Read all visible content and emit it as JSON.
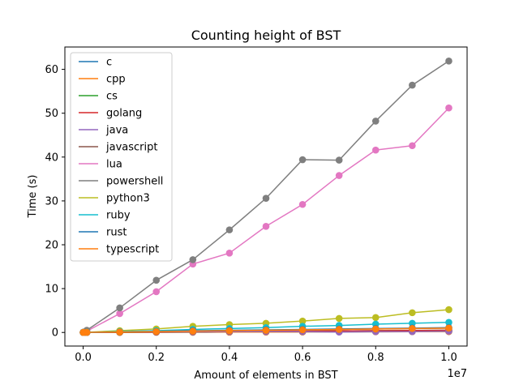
{
  "chart_data": {
    "type": "line",
    "title": "Counting height of BST",
    "xlabel": "Amount of elements in BST",
    "ylabel": "Time (s)",
    "x_offset_label": "1e7",
    "xlim": [
      -0.05,
      1.05
    ],
    "ylim": [
      -3.1,
      65.1
    ],
    "xticks": [
      0.0,
      0.2,
      0.4,
      0.6,
      0.8,
      1.0
    ],
    "xtick_labels": [
      "0.0",
      "0.2",
      "0.4",
      "0.6",
      "0.8",
      "1.0"
    ],
    "yticks": [
      0,
      10,
      20,
      30,
      40,
      50,
      60
    ],
    "ytick_labels": [
      "0",
      "10",
      "20",
      "30",
      "40",
      "50",
      "60"
    ],
    "grid": false,
    "legend_position": "top-left",
    "x": [
      0.0001,
      0.001,
      0.01,
      0.1,
      0.2,
      0.3,
      0.4,
      0.5,
      0.6,
      0.7,
      0.8,
      0.9,
      1.0
    ],
    "series": [
      {
        "name": "c",
        "color": "#1f77b4",
        "values": [
          0.0,
          0.0,
          0.0,
          0.02,
          0.04,
          0.06,
          0.08,
          0.1,
          0.12,
          0.14,
          0.16,
          0.18,
          0.2
        ]
      },
      {
        "name": "cpp",
        "color": "#ff7f0e",
        "values": [
          0.0,
          0.0,
          0.0,
          0.02,
          0.04,
          0.06,
          0.08,
          0.1,
          0.12,
          0.14,
          0.16,
          0.18,
          0.2
        ]
      },
      {
        "name": "cs",
        "color": "#2ca02c",
        "values": [
          0.0,
          0.0,
          0.0,
          0.05,
          0.1,
          0.15,
          0.2,
          0.25,
          0.3,
          0.35,
          0.4,
          0.45,
          0.5
        ]
      },
      {
        "name": "golang",
        "color": "#d62728",
        "values": [
          0.0,
          0.0,
          0.0,
          0.05,
          0.1,
          0.15,
          0.2,
          0.25,
          0.3,
          0.35,
          0.4,
          0.45,
          0.5
        ]
      },
      {
        "name": "java",
        "color": "#9467bd",
        "values": [
          0.0,
          0.0,
          0.01,
          0.1,
          0.15,
          0.15,
          0.2,
          0.2,
          0.2,
          0.1,
          0.2,
          0.2,
          0.3
        ]
      },
      {
        "name": "javascript",
        "color": "#8c564b",
        "values": [
          0.0,
          0.0,
          0.01,
          0.1,
          0.2,
          0.3,
          0.4,
          0.5,
          0.6,
          0.7,
          0.8,
          0.9,
          1.0
        ]
      },
      {
        "name": "lua",
        "color": "#e377c2",
        "values": [
          0.0,
          0.0,
          0.3,
          4.3,
          9.3,
          15.6,
          18.1,
          24.2,
          29.2,
          35.8,
          41.6,
          42.6,
          51.2
        ]
      },
      {
        "name": "powershell",
        "color": "#7f7f7f",
        "values": [
          0.0,
          0.1,
          0.5,
          5.6,
          11.9,
          16.6,
          23.4,
          30.6,
          39.4,
          39.3,
          48.2,
          56.4,
          61.9
        ]
      },
      {
        "name": "python3",
        "color": "#bcbd22",
        "values": [
          0.0,
          0.0,
          0.05,
          0.4,
          0.8,
          1.4,
          1.8,
          2.1,
          2.6,
          3.2,
          3.4,
          4.5,
          5.2
        ]
      },
      {
        "name": "ruby",
        "color": "#17becf",
        "values": [
          0.0,
          0.0,
          0.02,
          0.2,
          0.4,
          0.7,
          0.9,
          1.1,
          1.4,
          1.6,
          1.9,
          2.1,
          2.3
        ]
      },
      {
        "name": "rust",
        "color": "#1f77b4",
        "values": [
          0.0,
          0.0,
          0.0,
          0.1,
          0.25,
          0.4,
          0.5,
          0.6,
          0.7,
          0.8,
          0.9,
          1.0,
          1.1
        ]
      },
      {
        "name": "typescript",
        "color": "#ff7f0e",
        "values": [
          0.0,
          0.0,
          0.01,
          0.1,
          0.2,
          0.3,
          0.4,
          0.5,
          0.6,
          0.7,
          0.8,
          0.9,
          1.0
        ]
      }
    ]
  }
}
